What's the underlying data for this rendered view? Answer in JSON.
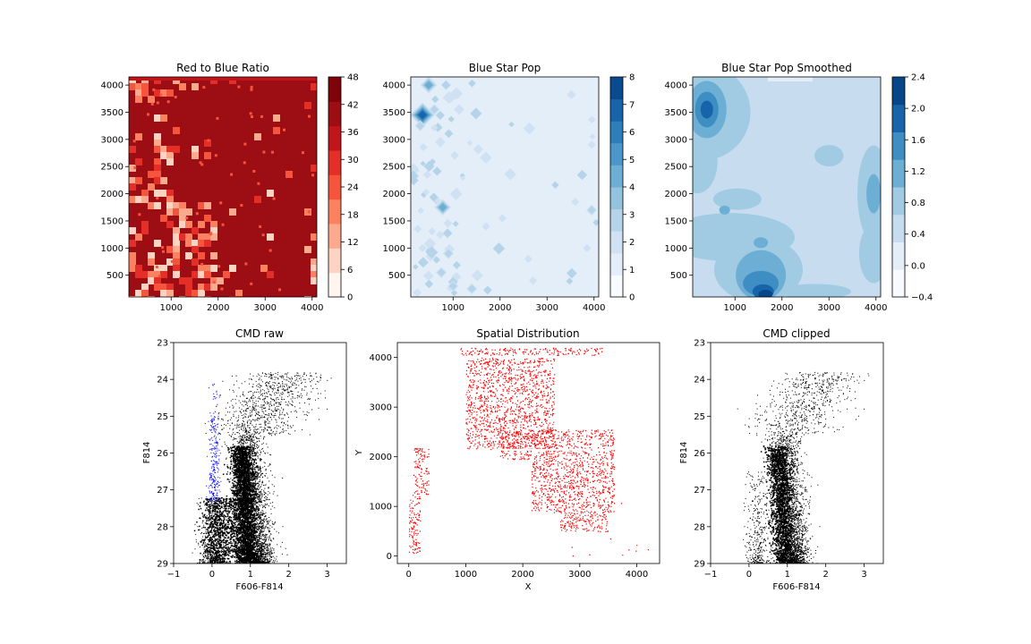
{
  "chart_data": [
    {
      "type": "heatmap",
      "title": "Red to Blue Ratio",
      "xlim": [
        100,
        4100
      ],
      "ylim": [
        100,
        4150
      ],
      "xticks": [
        1000,
        2000,
        3000,
        4000
      ],
      "yticks": [
        500,
        1000,
        1500,
        2000,
        2500,
        3000,
        3500,
        4000
      ],
      "colorbar": {
        "ticks": [
          0,
          6,
          12,
          18,
          24,
          30,
          36,
          42,
          48
        ],
        "colors": [
          "#fff5f0",
          "#fdd4c2",
          "#fcaa8e",
          "#fc8161",
          "#f5553d",
          "#e32f27",
          "#c1151b",
          "#9d0d14",
          "#7f0308"
        ]
      },
      "note_values": "dark background (level 42-48) with pale patches concentrated in left portion"
    },
    {
      "type": "heatmap",
      "title": "Blue Star Pop",
      "xlim": [
        100,
        4100
      ],
      "ylim": [
        100,
        4150
      ],
      "xticks": [
        1000,
        2000,
        3000,
        4000
      ],
      "yticks": [
        500,
        1000,
        1500,
        2000,
        2500,
        3000,
        3500,
        4000
      ],
      "colorbar": {
        "ticks": [
          0,
          1,
          2,
          3,
          4,
          5,
          6,
          7,
          8
        ],
        "colors": [
          "#f7fbff",
          "#e3eef8",
          "#cfe1f2",
          "#b5d4e9",
          "#93c3df",
          "#6daed5",
          "#4b97c9",
          "#2f7ebc",
          "#1864aa",
          "#0a4a90"
        ]
      },
      "hotspots": [
        [
          480,
          4000,
          4
        ],
        [
          350,
          3450,
          7
        ],
        [
          780,
          1750,
          4
        ],
        [
          300,
          3250,
          2
        ],
        [
          600,
          3550,
          2
        ],
        [
          450,
          2350,
          1
        ],
        [
          250,
          1350,
          1
        ],
        [
          900,
          900,
          2
        ],
        [
          750,
          550,
          2
        ],
        [
          1000,
          300,
          2
        ],
        [
          3950,
          1700,
          2
        ],
        [
          3950,
          2900,
          1
        ],
        [
          2050,
          1550,
          1
        ],
        [
          350,
          1000,
          1
        ],
        [
          2700,
          400,
          1
        ],
        [
          2600,
          800,
          1
        ],
        [
          3850,
          1000,
          1
        ],
        [
          3600,
          1850,
          1
        ],
        [
          1400,
          250,
          2
        ],
        [
          1700,
          1400,
          1
        ]
      ]
    },
    {
      "type": "heatmap",
      "title": "Blue Star Pop Smoothed",
      "xlim": [
        100,
        4100
      ],
      "ylim": [
        100,
        4150
      ],
      "xticks": [
        1000,
        2000,
        3000,
        4000
      ],
      "yticks": [
        500,
        1000,
        1500,
        2000,
        2500,
        3000,
        3500,
        4000
      ],
      "colorbar": {
        "ticks": [
          -0.4,
          0.0,
          0.4,
          0.8,
          1.2,
          1.6,
          2.0,
          2.4
        ],
        "colors": [
          "#f7fbff",
          "#e3eef8",
          "#c7dcef",
          "#a0cbe2",
          "#6daed5",
          "#3e8ec4",
          "#1764ab",
          "#08468a"
        ]
      },
      "hotspots": [
        [
          400,
          3550,
          2.4
        ],
        [
          1650,
          250,
          2.2
        ],
        [
          1500,
          700,
          1.3
        ],
        [
          750,
          1700,
          0.9
        ],
        [
          3900,
          2000,
          1.0
        ],
        [
          3900,
          1100,
          0.6
        ]
      ]
    },
    {
      "type": "scatter",
      "title": "CMD raw",
      "xlabel": "F606-F814",
      "ylabel": "F814",
      "xlim": [
        -1,
        3.5
      ],
      "ylim": [
        29,
        23
      ],
      "xticks": [
        -1,
        0,
        1,
        2,
        3
      ],
      "yticks": [
        23,
        24,
        25,
        26,
        27,
        28,
        29
      ],
      "series": [
        {
          "color": "#000000",
          "description": "main sequence/RGB stars"
        },
        {
          "color": "#0000ff",
          "description": "selected blue stars",
          "x_range": [
            -0.1,
            0.3
          ],
          "y_range": [
            23.6,
            27.3
          ]
        }
      ]
    },
    {
      "type": "scatter",
      "title": "Spatial Distribution",
      "xlabel": "X",
      "ylabel": "Y",
      "xlim": [
        -200,
        4400
      ],
      "ylim": [
        -150,
        4300
      ],
      "xticks": [
        0,
        1000,
        2000,
        3000,
        4000
      ],
      "yticks": [
        0,
        1000,
        2000,
        3000,
        4000
      ],
      "series": [
        {
          "color": "#ff0000"
        }
      ],
      "regions": [
        [
          900,
          3400,
          4050,
          4200
        ],
        [
          1000,
          2550,
          2150,
          4000
        ],
        [
          1600,
          3600,
          1950,
          2550
        ],
        [
          2150,
          3600,
          900,
          1950
        ],
        [
          2650,
          3500,
          500,
          900
        ],
        [
          80,
          350,
          1250,
          2200
        ],
        [
          0,
          200,
          0,
          1250
        ]
      ]
    },
    {
      "type": "scatter",
      "title": "CMD clipped",
      "xlabel": "F606-F814",
      "ylabel": "F814",
      "xlim": [
        -1,
        3.5
      ],
      "ylim": [
        29,
        23
      ],
      "xticks": [
        -1,
        0,
        1,
        2,
        3
      ],
      "yticks": [
        23,
        24,
        25,
        26,
        27,
        28,
        29
      ],
      "series": [
        {
          "color": "#000000"
        }
      ]
    }
  ]
}
